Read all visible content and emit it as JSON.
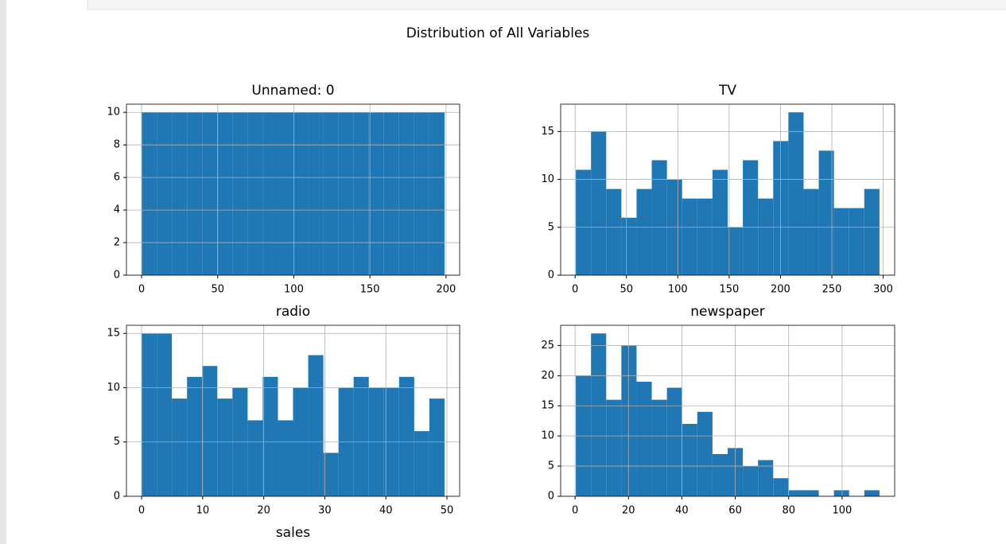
{
  "suptitle": "Distribution of All Variables",
  "chart_data": [
    {
      "type": "histogram",
      "title": "Unnamed: 0",
      "color": "#1f77b4",
      "grid": true,
      "bins": [
        0,
        9.95,
        19.9,
        29.85,
        39.8,
        49.75,
        59.7,
        69.65,
        79.6,
        89.55,
        99.5,
        109.45,
        119.4,
        129.35,
        139.3,
        149.25,
        159.2,
        169.15,
        179.1,
        189.05,
        199
      ],
      "values": [
        10,
        10,
        10,
        10,
        10,
        10,
        10,
        10,
        10,
        10,
        10,
        10,
        10,
        10,
        10,
        10,
        10,
        10,
        10,
        10
      ],
      "xlim": [
        -9.95,
        208.95
      ],
      "ylim": [
        0,
        10.5
      ],
      "xticks": [
        0,
        50,
        100,
        150,
        200
      ],
      "yticks": [
        0,
        2,
        4,
        6,
        8,
        10
      ]
    },
    {
      "type": "histogram",
      "title": "TV",
      "color": "#1f77b4",
      "grid": true,
      "bins": [
        0.7,
        15.485,
        30.27,
        45.055,
        59.84,
        74.625,
        89.41,
        104.195,
        118.98,
        133.765,
        148.55,
        163.335,
        178.12,
        192.905,
        207.69,
        222.475,
        237.26,
        252.045,
        266.83,
        281.615,
        296.4
      ],
      "values": [
        11,
        15,
        9,
        6,
        9,
        12,
        10,
        8,
        8,
        11,
        5,
        12,
        8,
        14,
        17,
        9,
        13,
        7,
        7,
        9
      ],
      "xlim": [
        -14.085,
        311.185
      ],
      "ylim": [
        0,
        17.85
      ],
      "xticks": [
        0,
        50,
        100,
        150,
        200,
        250,
        300
      ],
      "yticks": [
        0,
        5,
        10,
        15
      ]
    },
    {
      "type": "histogram",
      "title": "radio",
      "color": "#1f77b4",
      "grid": true,
      "bins": [
        0,
        2.48,
        4.96,
        7.44,
        9.92,
        12.4,
        14.88,
        17.36,
        19.84,
        22.32,
        24.8,
        27.28,
        29.76,
        32.24,
        34.72,
        37.2,
        39.68,
        42.16,
        44.64,
        47.12,
        49.6
      ],
      "values": [
        15,
        15,
        9,
        11,
        12,
        9,
        10,
        7,
        11,
        7,
        10,
        13,
        4,
        10,
        11,
        10,
        10,
        11,
        6,
        9
      ],
      "xlim": [
        -2.48,
        52.08
      ],
      "ylim": [
        0,
        15.75
      ],
      "xticks": [
        0,
        10,
        20,
        30,
        40,
        50
      ],
      "yticks": [
        0,
        5,
        10,
        15
      ]
    },
    {
      "type": "histogram",
      "title": "newspaper",
      "color": "#1f77b4",
      "grid": true,
      "bins": [
        0.3,
        5.985,
        11.67,
        17.355,
        23.04,
        28.725,
        34.41,
        40.095,
        45.78,
        51.465,
        57.15,
        62.835,
        68.52,
        74.205,
        79.89,
        85.575,
        91.26,
        96.945,
        102.63,
        108.315,
        114
      ],
      "values": [
        20,
        27,
        16,
        25,
        19,
        16,
        18,
        12,
        14,
        7,
        8,
        5,
        6,
        3,
        1,
        1,
        0,
        1,
        0,
        1
      ],
      "xlim": [
        -5.385,
        119.685
      ],
      "ylim": [
        0,
        28.35
      ],
      "xticks": [
        0,
        20,
        40,
        60,
        80,
        100
      ],
      "yticks": [
        0,
        5,
        10,
        15,
        20,
        25
      ]
    },
    {
      "type": "histogram",
      "title": "sales"
    }
  ]
}
